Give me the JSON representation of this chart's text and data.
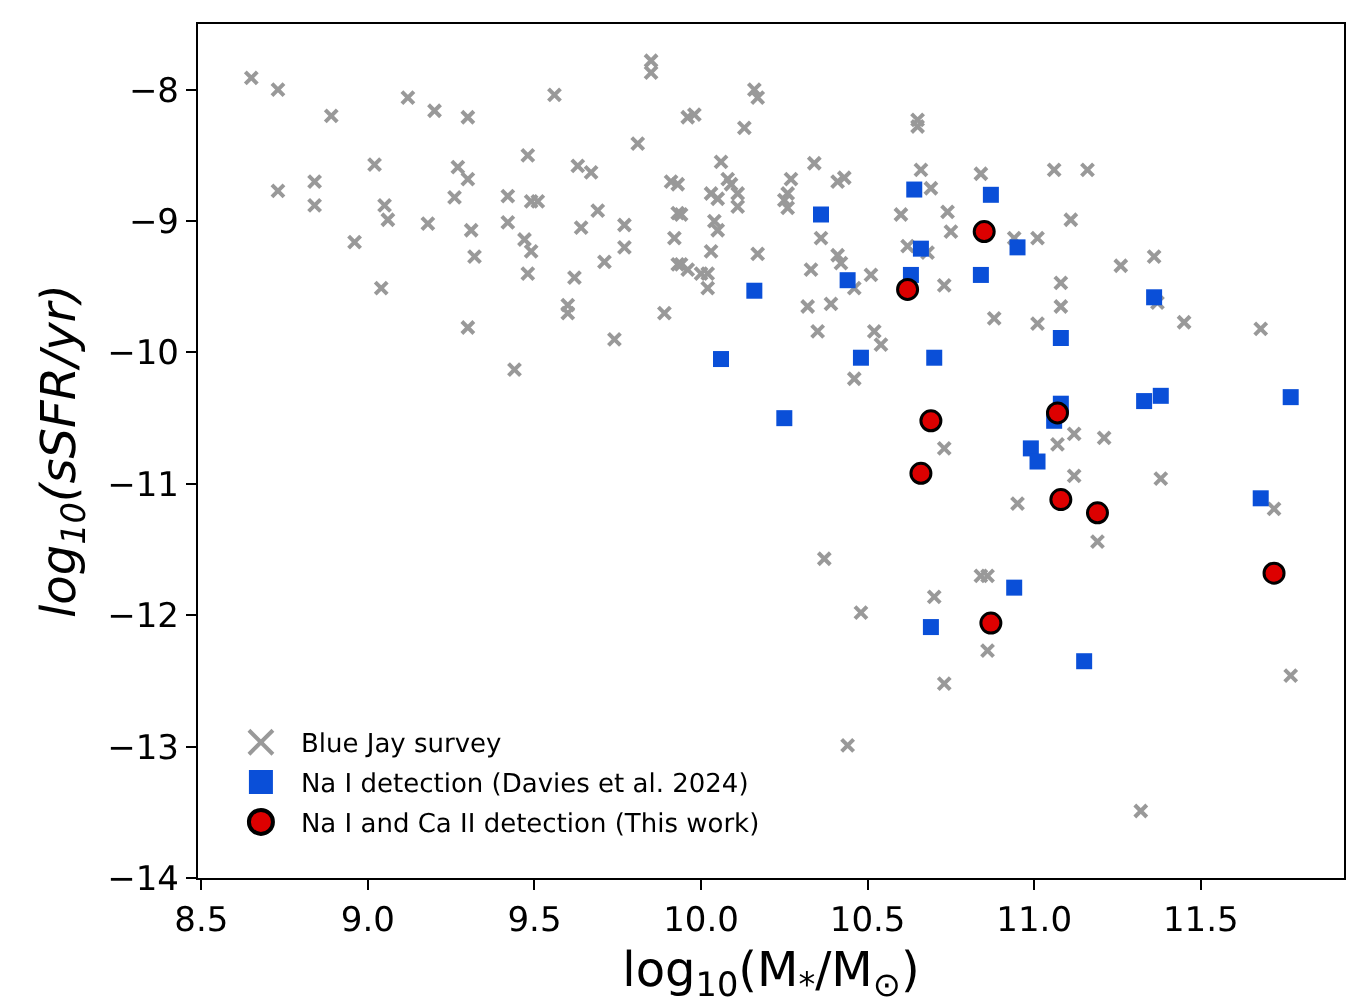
{
  "chart_data": {
    "type": "scatter",
    "xlabel": "log$_{10}$(M$_{*}$/M$_{⊙}$)",
    "ylabel": "log$_{10}$(sSFR/yr)",
    "xlim": [
      8.49,
      11.93
    ],
    "xticks": [
      {
        "value": 8.5,
        "label": "8.5"
      },
      {
        "value": 9.0,
        "label": "9.0"
      },
      {
        "value": 9.5,
        "label": "9.5"
      },
      {
        "value": 10.0,
        "label": "10.0"
      },
      {
        "value": 10.5,
        "label": "10.5"
      },
      {
        "value": 11.0,
        "label": "11.0"
      },
      {
        "value": 11.5,
        "label": "11.5"
      }
    ],
    "ylim": [
      -14,
      -7.5
    ],
    "yticks": [
      -14,
      -13,
      -12,
      -11,
      -10,
      -9,
      -8
    ],
    "legend": "bottom left",
    "series": [
      {
        "name": "Blue Jay survey",
        "color": "#999999",
        "marker": "cross",
        "x": [
          8.65,
          8.73,
          8.73,
          8.84,
          8.84,
          8.89,
          8.96,
          9.02,
          9.05,
          9.06,
          9.04,
          9.12,
          9.18,
          9.2,
          9.3,
          9.27,
          9.3,
          9.26,
          9.31,
          9.32,
          9.3,
          9.42,
          9.48,
          9.42,
          9.47,
          9.49,
          9.51,
          9.49,
          9.48,
          9.44,
          9.56,
          9.63,
          9.67,
          9.64,
          9.69,
          9.62,
          9.6,
          9.6,
          9.71,
          9.77,
          9.77,
          9.74,
          9.81,
          9.85,
          9.85,
          9.91,
          9.92,
          9.93,
          9.93,
          9.89,
          9.96,
          9.98,
          10.16,
          10.17,
          10.13,
          10.06,
          10.34,
          9.93,
          10.03,
          10.05,
          10.08,
          10.09,
          10.11,
          10.11,
          9.94,
          10.04,
          10.05,
          10.03,
          9.94,
          9.96,
          10.0,
          10.02,
          10.02,
          10.17,
          10.27,
          10.26,
          10.25,
          10.26,
          10.41,
          10.43,
          10.36,
          10.33,
          10.41,
          10.42,
          10.32,
          10.39,
          10.35,
          10.46,
          10.51,
          10.52,
          10.54,
          10.46,
          10.65,
          10.65,
          10.66,
          10.69,
          10.6,
          10.74,
          10.75,
          10.62,
          10.68,
          10.73,
          10.84,
          10.88,
          10.94,
          11.01,
          11.01,
          11.06,
          11.16,
          11.11,
          11.08,
          11.08,
          11.26,
          11.36,
          11.37,
          11.45,
          11.68,
          10.73,
          11.07,
          11.12,
          11.21,
          11.12,
          11.38,
          10.95,
          11.19,
          11.72,
          10.37,
          10.84,
          10.86,
          10.7,
          10.48,
          10.86,
          10.73,
          11.77,
          10.44,
          11.32
        ],
        "values": [
          -7.91,
          -8.0,
          -8.77,
          -8.7,
          -8.88,
          -8.2,
          -9.16,
          -8.57,
          -8.88,
          -8.99,
          -9.51,
          -8.06,
          -9.02,
          -8.16,
          -8.21,
          -8.59,
          -8.68,
          -8.82,
          -9.07,
          -9.27,
          -9.81,
          -8.81,
          -8.5,
          -9.01,
          -9.14,
          -8.85,
          -8.85,
          -9.23,
          -9.4,
          -10.13,
          -8.04,
          -8.58,
          -8.63,
          -9.05,
          -8.92,
          -9.43,
          -9.64,
          -9.7,
          -9.31,
          -9.03,
          -9.2,
          -9.9,
          -8.41,
          -7.78,
          -7.87,
          -8.7,
          -9.13,
          -9.33,
          -8.94,
          -9.7,
          -8.21,
          -8.19,
          -8.0,
          -8.06,
          -8.29,
          -8.55,
          -8.56,
          -8.72,
          -8.79,
          -8.83,
          -8.68,
          -8.72,
          -8.79,
          -8.89,
          -8.95,
          -9.0,
          -9.07,
          -9.23,
          -9.33,
          -9.37,
          -9.4,
          -9.4,
          -9.51,
          -9.25,
          -8.68,
          -8.79,
          -8.84,
          -8.9,
          -8.7,
          -8.67,
          -9.13,
          -9.37,
          -9.26,
          -9.32,
          -9.65,
          -9.63,
          -9.84,
          -9.51,
          -9.41,
          -9.84,
          -9.94,
          -10.2,
          -8.23,
          -8.28,
          -8.61,
          -8.75,
          -8.95,
          -8.93,
          -9.08,
          -9.19,
          -9.24,
          -9.49,
          -8.64,
          -9.74,
          -9.13,
          -9.13,
          -9.78,
          -8.61,
          -8.61,
          -8.99,
          -9.47,
          -9.65,
          -9.34,
          -9.27,
          -9.62,
          -9.77,
          -9.82,
          -10.73,
          -10.7,
          -10.62,
          -10.65,
          -10.94,
          -10.96,
          -11.15,
          -11.44,
          -11.19,
          -11.57,
          -11.7,
          -11.7,
          -11.86,
          -11.98,
          -12.27,
          -12.52,
          -12.46,
          -12.99,
          -13.49
        ]
      },
      {
        "name": "Na I detection (Davies et al. 2024)",
        "color": "#0a4fd8",
        "marker": "square",
        "x": [
          10.64,
          10.87,
          10.36,
          10.66,
          10.95,
          10.63,
          10.84,
          10.44,
          10.16,
          11.36,
          11.08,
          10.06,
          10.48,
          10.7,
          11.33,
          11.38,
          11.77,
          10.25,
          11.08,
          11.06,
          10.99,
          11.01,
          11.68,
          10.94,
          10.69,
          11.15
        ],
        "values": [
          -8.76,
          -8.8,
          -8.95,
          -9.21,
          -9.2,
          -9.41,
          -9.41,
          -9.45,
          -9.53,
          -9.58,
          -9.89,
          -10.05,
          -10.04,
          -10.04,
          -10.37,
          -10.33,
          -10.34,
          -10.5,
          -10.39,
          -10.52,
          -10.73,
          -10.83,
          -11.11,
          -11.79,
          -12.09,
          -12.35
        ]
      },
      {
        "name": "Na I and Ca II detection (This work)",
        "color": "#dd0000",
        "marker": "circle",
        "x": [
          10.85,
          10.62,
          10.69,
          11.07,
          10.66,
          11.08,
          11.19,
          11.72,
          10.87
        ],
        "values": [
          -9.08,
          -9.52,
          -10.52,
          -10.46,
          -10.92,
          -11.12,
          -11.22,
          -11.68,
          -12.06
        ]
      }
    ]
  }
}
